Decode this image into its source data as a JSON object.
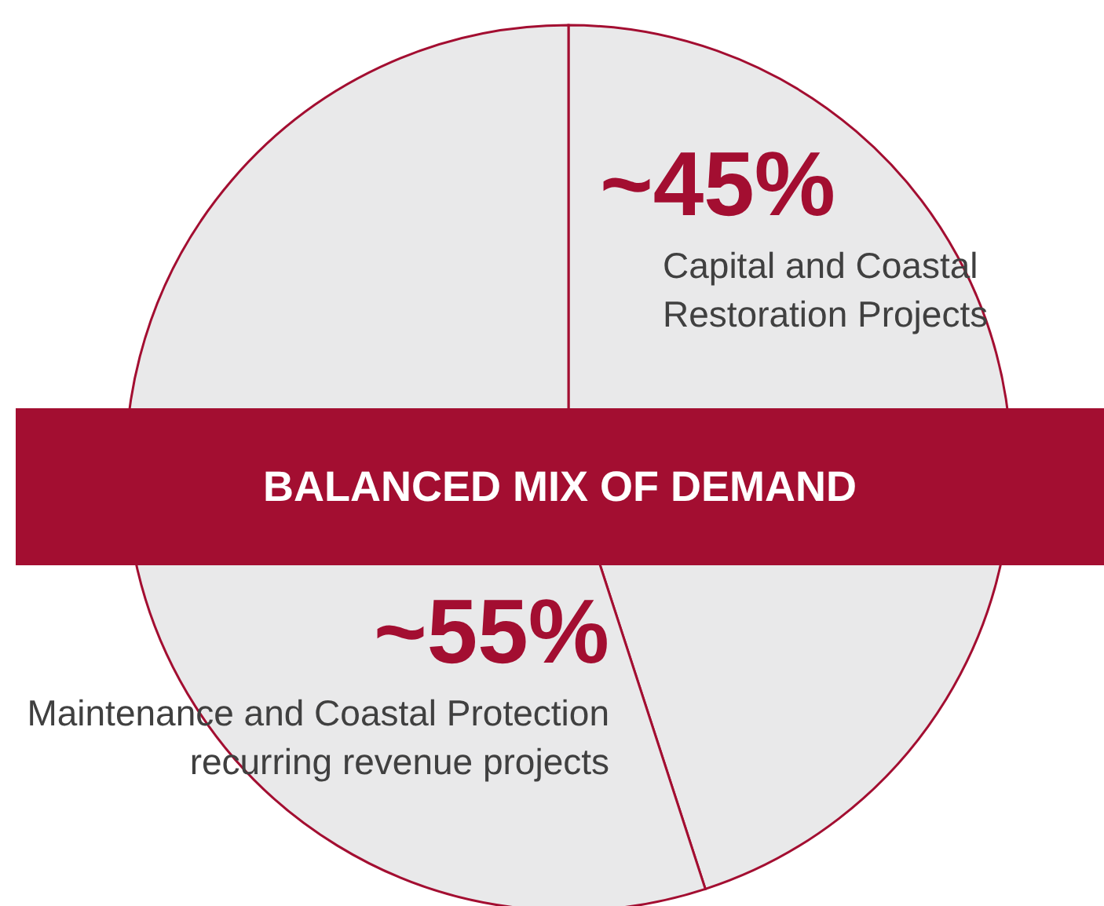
{
  "chart_data": {
    "type": "pie",
    "title": "BALANCED MIX OF DEMAND",
    "categories": [
      "Capital and Coastal Restoration Projects",
      "Maintenance and Coastal Protection recurring revenue projects"
    ],
    "values": [
      45,
      55
    ],
    "colors": [
      "#e9e9ea",
      "#e9e9ea"
    ],
    "value_labels": [
      "~45%",
      "~55%"
    ]
  }
}
